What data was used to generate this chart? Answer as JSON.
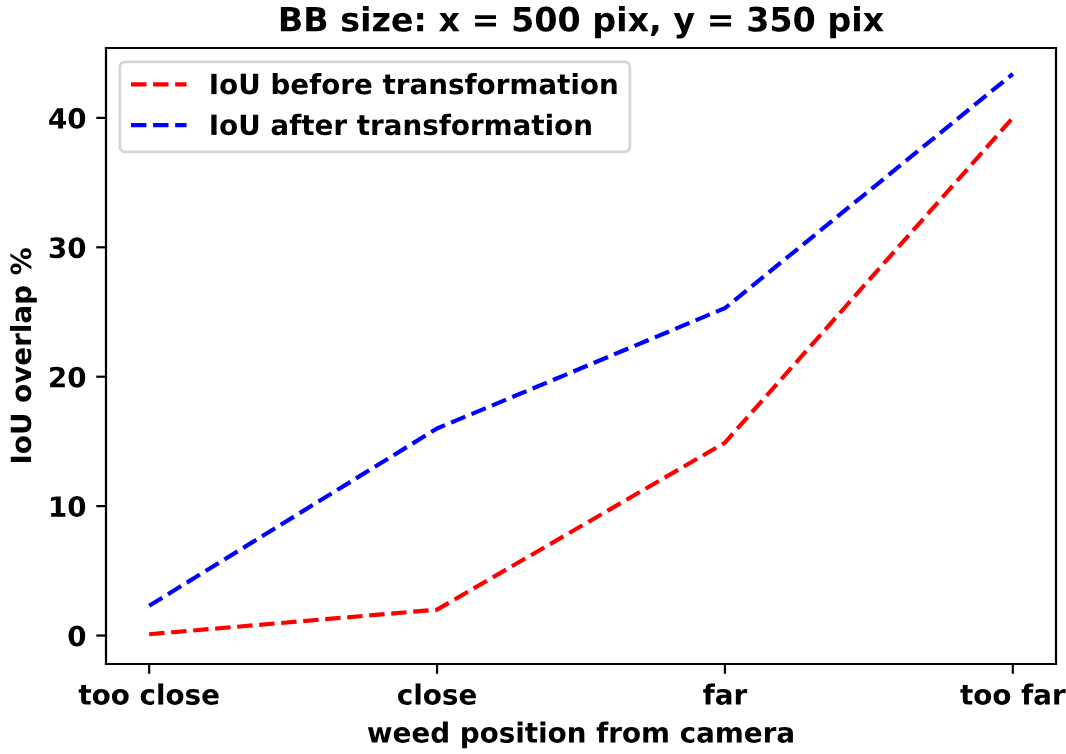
{
  "chart_data": {
    "type": "line",
    "title": "BB size: x = 500 pix, y = 350 pix",
    "xlabel": "weed position from camera",
    "ylabel": "IoU overlap %",
    "categories": [
      "too close",
      "close",
      "far",
      "too far"
    ],
    "series": [
      {
        "name": "IoU before transformation",
        "color": "#ff0000",
        "values": [
          0.1,
          2.0,
          14.9,
          40.0
        ]
      },
      {
        "name": "IoU after transformation",
        "color": "#0000ff",
        "values": [
          2.3,
          16.0,
          25.3,
          43.4
        ]
      }
    ],
    "ylim": [
      -2.2,
      45.4
    ],
    "yticks": [
      0,
      10,
      20,
      30,
      40
    ],
    "line_style": "dashed",
    "marker": "none",
    "legend": "top left",
    "grid": false
  }
}
